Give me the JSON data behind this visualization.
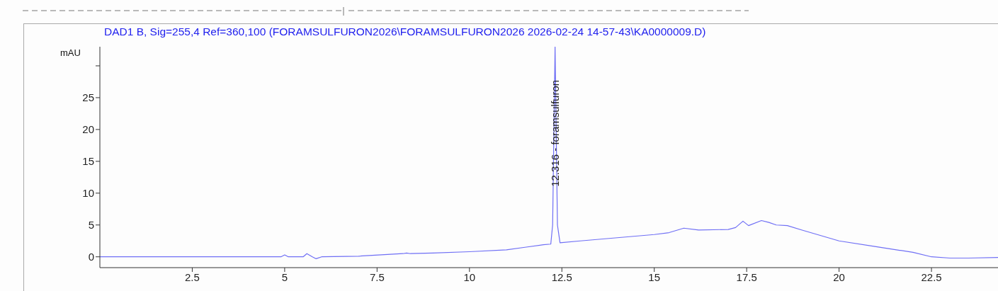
{
  "chart_data": {
    "type": "line",
    "title": "DAD1 B, Sig=255,4 Ref=360,100 (FORAMSULFURON2026\\FORAMSULFURON2026 2026-02-24 14-57-43\\KA0000009.D)",
    "ylabel": "mAU",
    "annotations": [
      {
        "text": "12.316 -  foramsulfuron",
        "x": 12.316,
        "y": 11
      }
    ],
    "xlim": [
      0,
      24.3
    ],
    "ylim": [
      -1.7,
      33
    ],
    "xticks": [
      2.5,
      5,
      7.5,
      10,
      12.5,
      15,
      17.5,
      20,
      22.5
    ],
    "yticks": [
      0,
      5,
      10,
      15,
      20,
      25,
      {
        "value": 30,
        "label": null
      }
    ],
    "marker": "none",
    "line_style": "solid",
    "series": [
      {
        "color": "#6f6ff5",
        "x": [
          0,
          4.9,
          5.0,
          5.1,
          5.5,
          5.6,
          5.75,
          5.85,
          6.0,
          7.0,
          8.2,
          8.3,
          8.4,
          9.0,
          10.0,
          11.0,
          11.5,
          12.0,
          12.2,
          12.25,
          12.316,
          12.38,
          12.45,
          13.0,
          14.0,
          15.0,
          15.4,
          15.8,
          16.2,
          17.0,
          17.2,
          17.4,
          17.55,
          17.9,
          18.1,
          18.3,
          18.6,
          19.0,
          20.0,
          21.0,
          22.0,
          22.5,
          23.0,
          23.5,
          24.3
        ],
        "values": [
          0,
          0,
          0.3,
          0,
          0,
          0.5,
          0,
          -0.3,
          0,
          0.1,
          0.5,
          0.6,
          0.5,
          0.6,
          0.8,
          1.1,
          1.5,
          1.9,
          2.0,
          5,
          33,
          5,
          2.2,
          2.5,
          3.0,
          3.5,
          3.8,
          4.5,
          4.2,
          4.3,
          4.6,
          5.6,
          4.9,
          5.7,
          5.4,
          5.0,
          4.9,
          4.2,
          2.5,
          1.6,
          0.7,
          0,
          -0.2,
          -0.2,
          -0.1
        ]
      }
    ]
  }
}
